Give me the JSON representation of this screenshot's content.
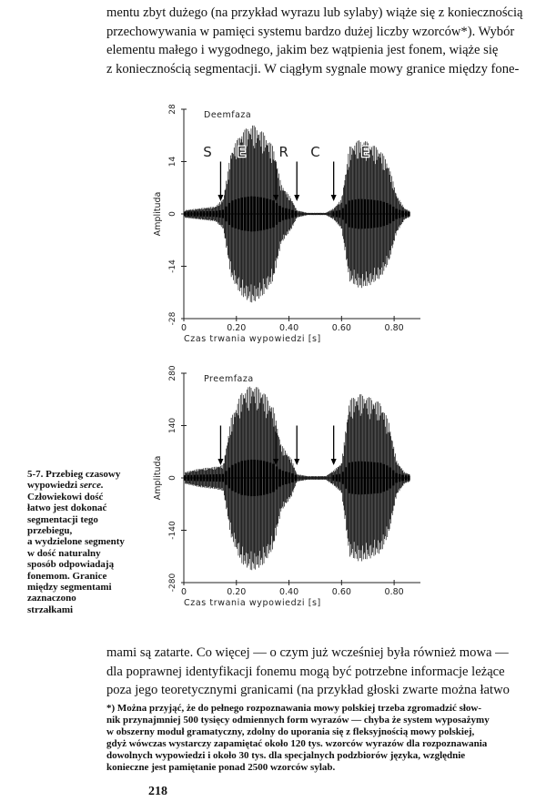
{
  "body_text_top": [
    "mentu zbyt dużego (na przykład wyrazu lub sylaby) wiąże się z koniecznością",
    "przechowywania w pamięci systemu bardzo dużej liczby wzorców*). Wybór",
    "elementu małego i wygodnego, jakim bez wątpienia jest fonem, wiąże się",
    "z koniecznością segmentacji. W ciągłym sygnale mowy granice między fone-"
  ],
  "body_text_bottom": [
    "mami są zatarte. Co więcej — o czym już wcześniej była również mowa —",
    "dla poprawnej identyfikacji fonemu mogą być potrzebne informacje leżące",
    "poza jego teoretycznymi granicami (na przykład głoski zwarte można łatwo"
  ],
  "caption": {
    "lines": [
      "5-7. Przebieg czasowy",
      "wypowiedzi ",
      "Człowiekowi dość",
      "łatwo jest dokonać",
      "segmentacji tego",
      "przebiegu,",
      "a wydzielone segmenty",
      "w dość naturalny",
      "sposób odpowiadają",
      "fonemom. Granice",
      "między segmentami",
      "zaznaczono",
      "strzałkami"
    ],
    "italic_word": "serce."
  },
  "footnote": [
    "*) Można przyjąć, że do pełnego rozpoznawania mowy polskiej trzeba zgromadzić słow-",
    "nik przynajmniej 500 tysięcy odmiennych form wyrazów — chyba że system wyposażymy",
    "w obszerny moduł gramatyczny, zdolny do uporania się z fleksyjnością mowy polskiej,",
    "gdyż wówczas wystarczy zapamiętać około 120 tys. wzorców wyrazów dla rozpoznawania",
    "dowolnych wypowiedzi i około 30 tys. dla specjalnych podzbiorów języka, względnie",
    "konieczne jest pamiętanie ponad 2500 wzorców sylab."
  ],
  "page_number": "218",
  "chart_data": [
    {
      "type": "line",
      "title": "Deemfaza",
      "xlabel": "Czas trwania wypowiedzi [s]",
      "ylabel": "Amplituda",
      "xlim": [
        0,
        0.9
      ],
      "ylim": [
        -28,
        28
      ],
      "x_ticks": [
        "0",
        "0.20",
        "0.40",
        "0.60",
        "0.80"
      ],
      "y_ticks": [
        "-28",
        "-14",
        "0",
        "14",
        "28"
      ],
      "segment_labels": [
        {
          "text": "S",
          "x": 0.09
        },
        {
          "text": "E",
          "x": 0.22
        },
        {
          "text": "R",
          "x": 0.38
        },
        {
          "text": "C",
          "x": 0.5
        },
        {
          "text": "E",
          "x": 0.69
        }
      ],
      "boundary_arrows_x": [
        0.14,
        0.35,
        0.43,
        0.57
      ],
      "envelope": {
        "x": [
          0.0,
          0.06,
          0.12,
          0.15,
          0.18,
          0.22,
          0.26,
          0.3,
          0.34,
          0.37,
          0.41,
          0.43,
          0.47,
          0.5,
          0.54,
          0.57,
          0.6,
          0.63,
          0.67,
          0.71,
          0.75,
          0.78,
          0.81,
          0.84,
          0.86
        ],
        "amp": [
          1.0,
          1.5,
          2.0,
          4.0,
          17.0,
          22.0,
          24.0,
          22.0,
          18.0,
          8.0,
          4.0,
          1.0,
          0.3,
          0.3,
          0.3,
          1.5,
          4.0,
          18.0,
          20.0,
          19.0,
          17.0,
          13.0,
          5.0,
          1.5,
          0.8
        ]
      }
    },
    {
      "type": "line",
      "title": "Preemfaza",
      "xlabel": "Czas trwania wypowiedzi [s]",
      "ylabel": "Amplituda",
      "xlim": [
        0,
        0.9
      ],
      "ylim": [
        -280,
        280
      ],
      "x_ticks": [
        "0",
        "0.20",
        "0.40",
        "0.60",
        "0.80"
      ],
      "y_ticks": [
        "-280",
        "-140",
        "0",
        "140",
        "280"
      ],
      "boundary_arrows_x": [
        0.14,
        0.35,
        0.43,
        0.57
      ],
      "envelope": {
        "x": [
          0.0,
          0.06,
          0.12,
          0.15,
          0.18,
          0.22,
          0.26,
          0.3,
          0.34,
          0.37,
          0.41,
          0.43,
          0.47,
          0.5,
          0.54,
          0.57,
          0.6,
          0.63,
          0.67,
          0.71,
          0.75,
          0.78,
          0.81,
          0.84,
          0.86
        ],
        "amp": [
          15,
          25,
          30,
          35,
          160,
          230,
          250,
          235,
          190,
          90,
          50,
          10,
          5,
          5,
          5,
          20,
          40,
          210,
          225,
          215,
          200,
          150,
          45,
          15,
          10
        ]
      }
    }
  ]
}
